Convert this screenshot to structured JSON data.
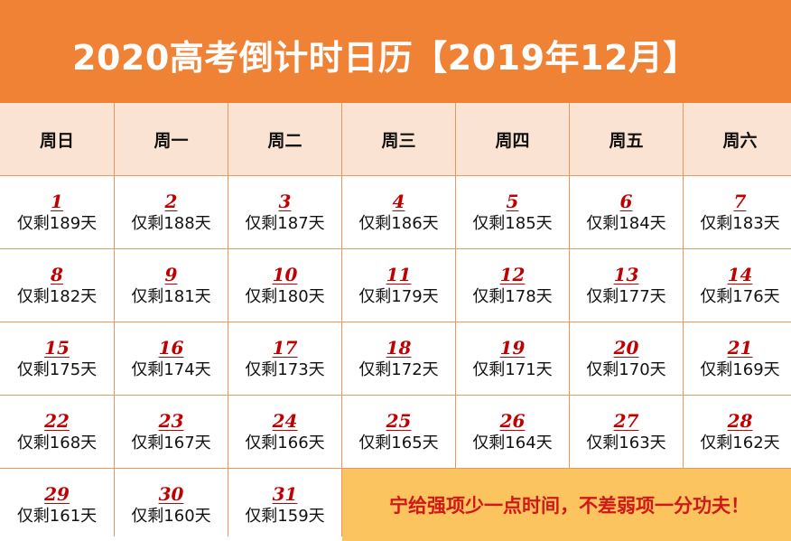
{
  "header": {
    "title": "2020高考倒计时日历【2019年12月】"
  },
  "weekdays": [
    "周日",
    "周一",
    "周二",
    "周三",
    "周四",
    "周五",
    "周六"
  ],
  "days": [
    {
      "num": "1",
      "left": "仅剩189天"
    },
    {
      "num": "2",
      "left": "仅剩188天"
    },
    {
      "num": "3",
      "left": "仅剩187天"
    },
    {
      "num": "4",
      "left": "仅剩186天"
    },
    {
      "num": "5",
      "left": "仅剩185天"
    },
    {
      "num": "6",
      "left": "仅剩184天"
    },
    {
      "num": "7",
      "left": "仅剩183天"
    },
    {
      "num": "8",
      "left": "仅剩182天"
    },
    {
      "num": "9",
      "left": "仅剩181天"
    },
    {
      "num": "10",
      "left": "仅剩180天"
    },
    {
      "num": "11",
      "left": "仅剩179天"
    },
    {
      "num": "12",
      "left": "仅剩178天"
    },
    {
      "num": "13",
      "left": "仅剩177天"
    },
    {
      "num": "14",
      "left": "仅剩176天"
    },
    {
      "num": "15",
      "left": "仅剩175天"
    },
    {
      "num": "16",
      "left": "仅剩174天"
    },
    {
      "num": "17",
      "left": "仅剩173天"
    },
    {
      "num": "18",
      "left": "仅剩172天"
    },
    {
      "num": "19",
      "left": "仅剩171天"
    },
    {
      "num": "20",
      "left": "仅剩170天"
    },
    {
      "num": "21",
      "left": "仅剩169天"
    },
    {
      "num": "22",
      "left": "仅剩168天"
    },
    {
      "num": "23",
      "left": "仅剩167天"
    },
    {
      "num": "24",
      "left": "仅剩166天"
    },
    {
      "num": "25",
      "left": "仅剩165天"
    },
    {
      "num": "26",
      "left": "仅剩164天"
    },
    {
      "num": "27",
      "left": "仅剩163天"
    },
    {
      "num": "28",
      "left": "仅剩162天"
    },
    {
      "num": "29",
      "left": "仅剩161天"
    },
    {
      "num": "30",
      "left": "仅剩160天"
    },
    {
      "num": "31",
      "left": "仅剩159天"
    }
  ],
  "note": "宁给强项少一点时间，不差弱项一分功夫！",
  "colors": {
    "banner": "#F08236",
    "header_row": "#FBE3D3",
    "grid_line": "#E29A63",
    "day_number": "#C00000",
    "note_bg": "#FCC45E",
    "note_text": "#D01818"
  }
}
